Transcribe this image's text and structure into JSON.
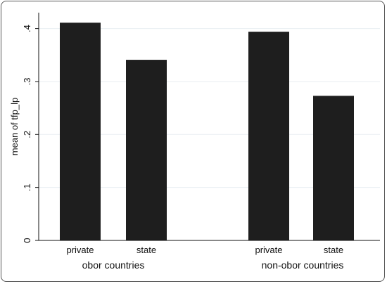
{
  "chart_data": {
    "type": "bar",
    "title": "",
    "ylabel": "mean of tfp_lp",
    "xlabel": "",
    "ylim": [
      0,
      0.43
    ],
    "yticks": [
      0,
      0.1,
      0.2,
      0.3,
      0.4
    ],
    "ytick_labels": [
      "0",
      ".1",
      ".2",
      ".3",
      ".4"
    ],
    "grid": true,
    "groups": [
      {
        "label": "obor countries",
        "categories": [
          "private",
          "state"
        ],
        "values": [
          0.411,
          0.341
        ]
      },
      {
        "label": "non-obor countries",
        "categories": [
          "private",
          "state"
        ],
        "values": [
          0.394,
          0.273
        ]
      }
    ],
    "bar_color": "#1e1e1e",
    "grid_color": "#e8eef2"
  }
}
